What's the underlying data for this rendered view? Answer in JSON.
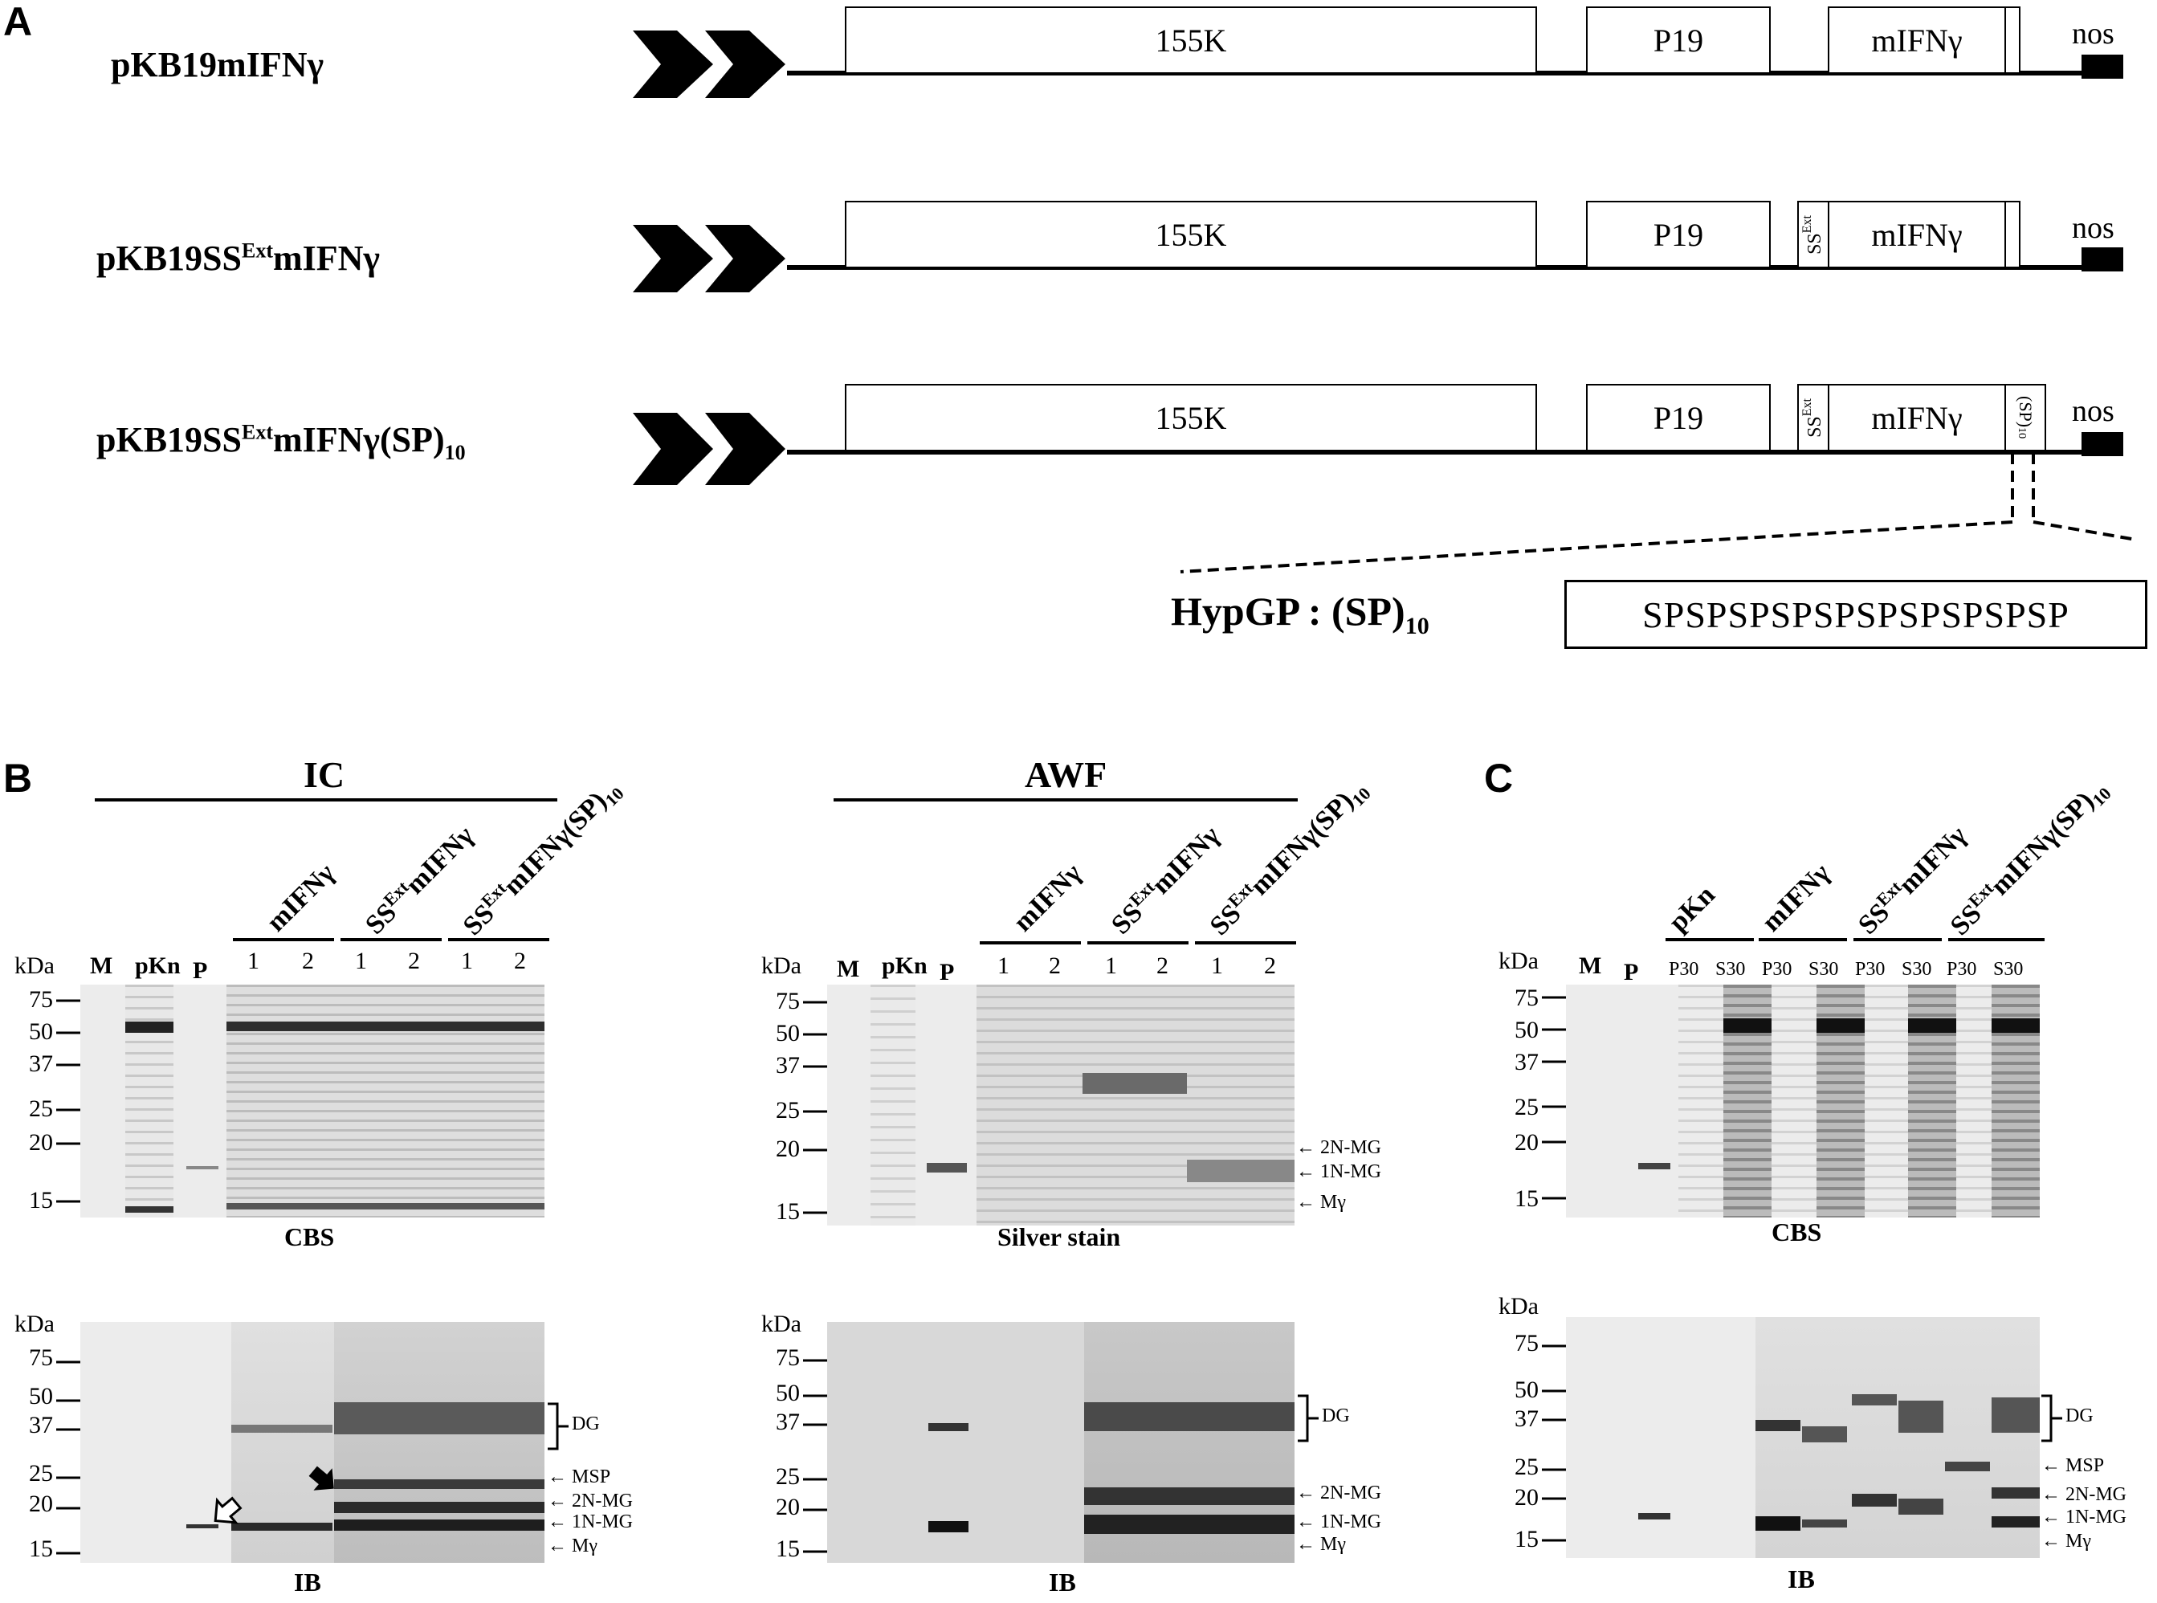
{
  "panel_a": {
    "letter": "A",
    "constructs": [
      {
        "name": "pKB19mIFNγ",
        "segments": [
          "155K",
          "P19",
          "mIFNγ"
        ],
        "nos": "nos"
      },
      {
        "name": "pKB19SSExtmIFNγ",
        "segments": [
          "155K",
          "P19",
          "SSExt",
          "mIFNγ"
        ],
        "nos": "nos"
      },
      {
        "name": "pKB19SSExtmIFNγ(SP)10",
        "segments": [
          "155K",
          "P19",
          "SSExt",
          "mIFNγ",
          "(SP)10"
        ],
        "nos": "nos"
      }
    ],
    "hypgp_label": "HypGP : (SP)10",
    "hypgp_sequence": "SPSPSPSPSPSPSPSPSPSP"
  },
  "panel_b": {
    "letter": "B",
    "group_ic": "IC",
    "group_awf": "AWF",
    "ic_columns": [
      "mIFNγ",
      "SSExtmIFNγ",
      "SSExtmIFNγ(SP)10"
    ],
    "awf_columns": [
      "mIFNγ",
      "SSExtmIFNγ",
      "SSExtmIFNγ(SP)10"
    ],
    "lanes": [
      "M",
      "pKn",
      "P",
      "1",
      "2",
      "1",
      "2",
      "1",
      "2"
    ],
    "kda": "kDa",
    "markers_top": [
      "75",
      "50",
      "37",
      "25",
      "20",
      "15"
    ],
    "markers_bottom": [
      "75",
      "50",
      "37",
      "25",
      "20",
      "15"
    ],
    "caption_cbs": "CBS",
    "caption_silver": "Silver stain",
    "caption_ib": "IB",
    "band_labels_awf": [
      "2N-MG",
      "1N-MG",
      "Mγ"
    ],
    "band_labels_ib": [
      "DG",
      "MSP",
      "2N-MG",
      "1N-MG",
      "Mγ"
    ],
    "band_labels_awf_ib": [
      "DG",
      "2N-MG",
      "1N-MG",
      "Mγ"
    ]
  },
  "panel_c": {
    "letter": "C",
    "columns": [
      "pKn",
      "mIFNγ",
      "SSExtmIFNγ",
      "SSExtmIFNγ(SP)10"
    ],
    "lanes": [
      "M",
      "P",
      "P30",
      "S30",
      "P30",
      "S30",
      "P30",
      "S30",
      "P30",
      "S30"
    ],
    "kda": "kDa",
    "markers_top": [
      "75",
      "50",
      "37",
      "25",
      "20",
      "15"
    ],
    "markers_bottom": [
      "75",
      "50",
      "37",
      "25",
      "20",
      "15"
    ],
    "caption_cbs": "CBS",
    "caption_ib": "IB",
    "band_labels_ib": [
      "DG",
      "MSP",
      "2N-MG",
      "1N-MG",
      "Mγ"
    ]
  }
}
